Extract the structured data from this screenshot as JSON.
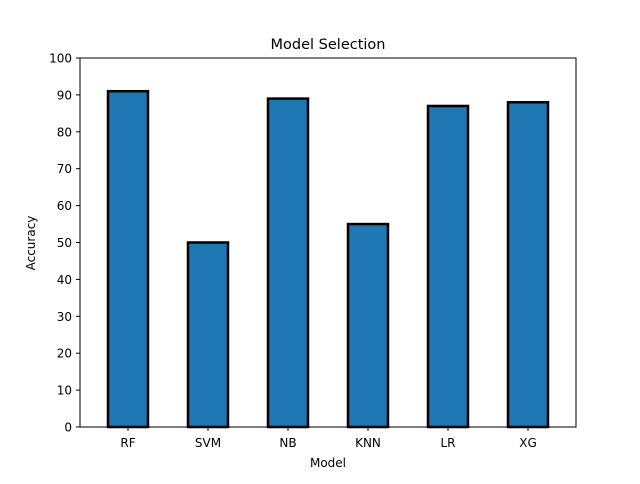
{
  "chart_data": {
    "type": "bar",
    "title": "Model Selection",
    "xlabel": "Model",
    "ylabel": "Accuracy",
    "categories": [
      "RF",
      "SVM",
      "NB",
      "KNN",
      "LR",
      "XG"
    ],
    "values": [
      91,
      50,
      89,
      55,
      87,
      88
    ],
    "ylim": [
      0,
      100
    ],
    "yticks": [
      0,
      10,
      20,
      30,
      40,
      50,
      60,
      70,
      80,
      90,
      100
    ],
    "grid": false,
    "legend": "none",
    "colors": {
      "bar_fill": "#1f77b4",
      "bar_edge": "#000000"
    }
  }
}
